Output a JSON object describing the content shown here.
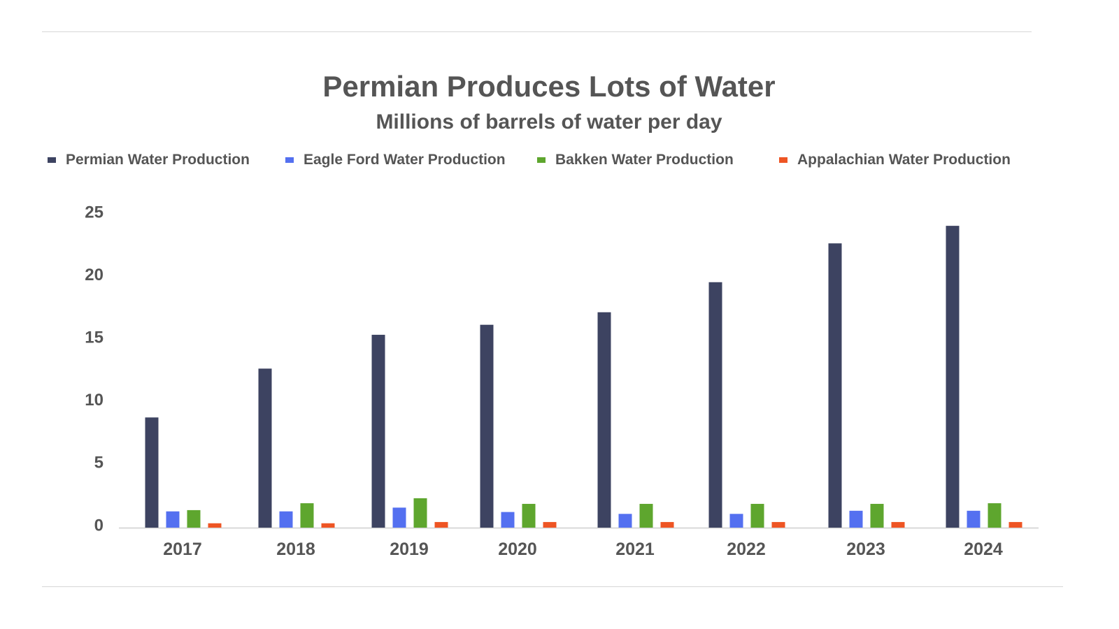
{
  "chart_data": {
    "type": "bar",
    "title": "Permian Produces Lots of Water",
    "subtitle": "Millions of barrels of water per day",
    "xlabel": "",
    "ylabel": "",
    "ylim": [
      0,
      25
    ],
    "yticks": [
      0,
      5,
      10,
      15,
      20,
      25
    ],
    "grid": false,
    "legend_position": "top",
    "categories": [
      "2017",
      "2018",
      "2019",
      "2020",
      "2021",
      "2022",
      "2023",
      "2024"
    ],
    "series": [
      {
        "name": "Permian Water Production",
        "color": "#3d4361",
        "values": [
          8.8,
          12.7,
          15.4,
          16.2,
          17.2,
          19.6,
          22.7,
          24.1
        ]
      },
      {
        "name": "Eagle Ford Water Production",
        "color": "#5470f0",
        "values": [
          1.3,
          1.3,
          1.6,
          1.25,
          1.1,
          1.1,
          1.35,
          1.35
        ]
      },
      {
        "name": "Bakken Water Production",
        "color": "#5ea62e",
        "values": [
          1.4,
          1.95,
          2.35,
          1.9,
          1.9,
          1.9,
          1.9,
          1.95
        ]
      },
      {
        "name": "Appalachian Water Production",
        "color": "#ee5524",
        "values": [
          0.35,
          0.35,
          0.45,
          0.45,
          0.45,
          0.45,
          0.45,
          0.45
        ]
      }
    ]
  }
}
